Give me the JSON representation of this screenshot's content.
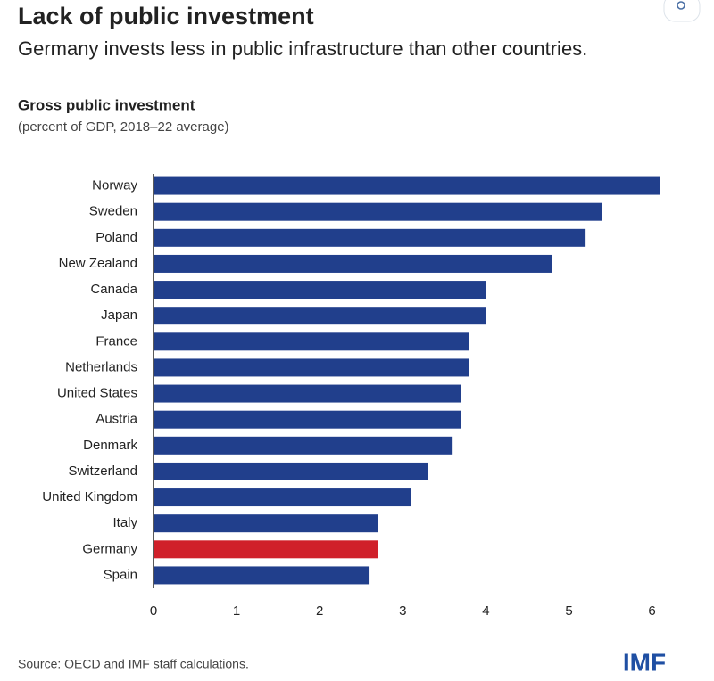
{
  "chart_data": {
    "type": "hbar",
    "title": "Lack of public investment",
    "subtitle": "Germany invests less in public infrastructure than other countries.",
    "chart_title": "Gross public investment",
    "chart_subtitle": "(percent of GDP, 2018–22 average)",
    "categories": [
      "Norway",
      "Sweden",
      "Poland",
      "New Zealand",
      "Canada",
      "Japan",
      "France",
      "Netherlands",
      "United States",
      "Austria",
      "Denmark",
      "Switzerland",
      "United Kingdom",
      "Italy",
      "Germany",
      "Spain"
    ],
    "values": [
      6.1,
      5.4,
      5.2,
      4.8,
      4.0,
      4.0,
      3.8,
      3.8,
      3.7,
      3.7,
      3.6,
      3.3,
      3.1,
      2.7,
      2.7,
      2.6
    ],
    "colors": [
      "#213f8c",
      "#213f8c",
      "#213f8c",
      "#213f8c",
      "#213f8c",
      "#213f8c",
      "#213f8c",
      "#213f8c",
      "#213f8c",
      "#213f8c",
      "#213f8c",
      "#213f8c",
      "#213f8c",
      "#213f8c",
      "#d0202a",
      "#213f8c"
    ],
    "xlim": [
      0,
      6.2
    ],
    "xticks": [
      0,
      1,
      2,
      3,
      4,
      5,
      6
    ],
    "grid": false,
    "source": "Source: OECD and IMF staff calculations.",
    "logo": "IMF"
  }
}
